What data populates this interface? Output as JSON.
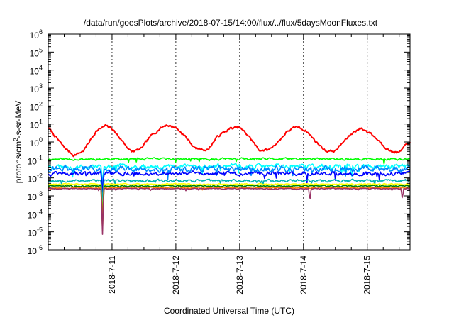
{
  "chart_data": {
    "type": "line",
    "title": "/data/run/goesPlots/archive/2018-07-15/14:00/flux/../flux/5daysMoonFluxes.txt",
    "xlabel": "Coordinated Universal Time (UTC)",
    "ylabel_parts": [
      "protons/cm",
      "2",
      "-s-sr-MeV"
    ],
    "y_scale": "log",
    "ylim_exponents": [
      -6,
      6
    ],
    "y_tick_base": "10",
    "y_tick_exponents": [
      -6,
      -5,
      -4,
      -3,
      -2,
      -1,
      0,
      1,
      2,
      3,
      4,
      5,
      6
    ],
    "x_unit": "days since 2018-07-10 00:00",
    "xlim": [
      0.0,
      5.67
    ],
    "x_ticks": [
      {
        "x": 1,
        "label": "2018-7-11"
      },
      {
        "x": 2,
        "label": "2018-7-12"
      },
      {
        "x": 3,
        "label": "2018-7-13"
      },
      {
        "x": 4,
        "label": "2018-7-14"
      },
      {
        "x": 5,
        "label": "2018-7-15"
      }
    ],
    "grid": "vertical dashed at x ticks",
    "legend": "none",
    "series": [
      {
        "color": "#ff0000",
        "base": [
          1,
          -0.2,
          0.8
        ],
        "anchors": [
          [
            0,
            0.8
          ],
          [
            0.25,
            -0.3
          ],
          [
            0.4,
            -0.75
          ],
          [
            0.55,
            -0.5
          ],
          [
            0.75,
            0.6
          ],
          [
            0.9,
            0.9
          ],
          [
            1.0,
            0.75
          ],
          [
            1.15,
            0.1
          ],
          [
            1.3,
            -0.55
          ],
          [
            1.45,
            -0.4
          ],
          [
            1.6,
            0.3
          ],
          [
            1.75,
            0.75
          ],
          [
            1.85,
            0.95
          ],
          [
            2.0,
            0.8
          ],
          [
            2.15,
            0.3
          ],
          [
            2.3,
            -0.35
          ],
          [
            2.5,
            -0.45
          ],
          [
            2.65,
            0.3
          ],
          [
            2.85,
            0.75
          ],
          [
            3.0,
            0.8
          ],
          [
            3.15,
            0.3
          ],
          [
            3.3,
            -0.45
          ],
          [
            3.45,
            -0.45
          ],
          [
            3.6,
            0.0
          ],
          [
            3.75,
            0.6
          ],
          [
            3.9,
            0.85
          ],
          [
            4.05,
            0.6
          ],
          [
            4.2,
            0.0
          ],
          [
            4.35,
            -0.5
          ],
          [
            4.5,
            -0.5
          ],
          [
            4.65,
            0.1
          ],
          [
            4.8,
            0.6
          ],
          [
            4.9,
            0.75
          ],
          [
            5.05,
            0.5
          ],
          [
            5.2,
            0.0
          ],
          [
            5.35,
            -0.5
          ],
          [
            5.5,
            -0.6
          ],
          [
            5.6,
            -0.2
          ],
          [
            5.67,
            0.0
          ]
        ],
        "noise": 0.12,
        "seed": 7
      },
      {
        "color": "#00ff00",
        "level": -0.95,
        "noise": 0.11,
        "seed": 11,
        "dips": []
      },
      {
        "color": "#00ffff",
        "level": -1.35,
        "noise": 0.22,
        "seed": 23,
        "dips": [
          [
            0.85,
            -2.5
          ]
        ]
      },
      {
        "color": "#0088ff",
        "level": -1.5,
        "noise": 0.28,
        "seed": 31,
        "dips": [
          [
            0.85,
            -2.5
          ]
        ]
      },
      {
        "color": "#0000ff",
        "level": -1.75,
        "noise": 0.2,
        "seed": 43,
        "dips": [
          [
            0.85,
            -3.0
          ]
        ]
      },
      {
        "color": "#00b4b4",
        "level": -2.15,
        "noise": 0.12,
        "seed": 53,
        "dips": [
          [
            0.85,
            -3.5
          ]
        ]
      },
      {
        "color": "#ffff00",
        "level": -2.35,
        "noise": 0.06,
        "seed": 61,
        "dips": [
          [
            0.85,
            -4.6
          ]
        ]
      },
      {
        "color": "#008000",
        "level": -2.45,
        "noise": 0.06,
        "seed": 71,
        "dips": [
          [
            0.85,
            -4.8
          ]
        ]
      },
      {
        "color": "#ff8000",
        "level": -2.55,
        "noise": 0.06,
        "seed": 79,
        "dips": [
          [
            0.85,
            -5.0
          ]
        ]
      },
      {
        "color": "#993366",
        "level": -2.6,
        "noise": 0.05,
        "seed": 89,
        "dips": [
          [
            0.85,
            -5.2
          ],
          [
            4.1,
            -3.3
          ],
          [
            5.55,
            -3.2
          ]
        ]
      }
    ]
  }
}
